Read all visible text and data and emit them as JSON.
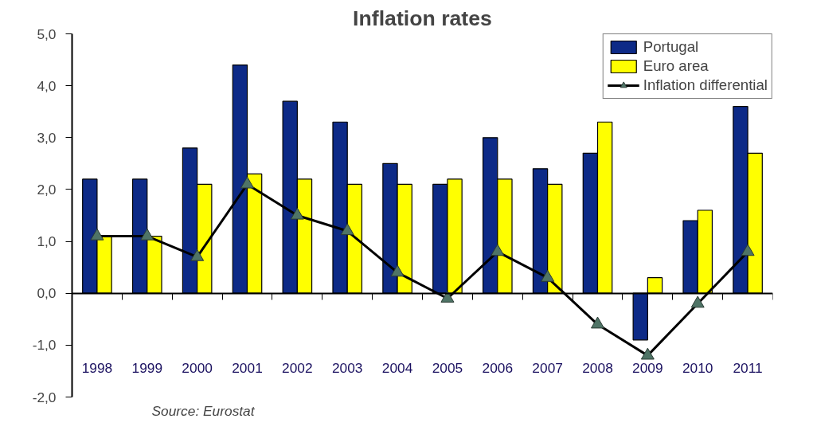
{
  "chart_data": {
    "type": "bar",
    "title": "Inflation rates",
    "categories": [
      "1998",
      "1999",
      "2000",
      "2001",
      "2002",
      "2003",
      "2004",
      "2005",
      "2006",
      "2007",
      "2008",
      "2009",
      "2010",
      "2011"
    ],
    "series": [
      {
        "name": "Portugal",
        "color": "#0d2a87",
        "values": [
          2.2,
          2.2,
          2.8,
          4.4,
          3.7,
          3.3,
          2.5,
          2.1,
          3.0,
          2.4,
          2.7,
          -0.9,
          1.4,
          3.6
        ]
      },
      {
        "name": "Euro area",
        "color": "#ffff00",
        "values": [
          1.1,
          1.1,
          2.1,
          2.3,
          2.2,
          2.1,
          2.1,
          2.2,
          2.2,
          2.1,
          3.3,
          0.3,
          1.6,
          2.7
        ]
      },
      {
        "name": "Inflation differential",
        "type": "line",
        "color": "#000000",
        "marker": "triangle",
        "values": [
          1.1,
          1.1,
          0.7,
          2.1,
          1.5,
          1.2,
          0.4,
          -0.1,
          0.8,
          0.3,
          -0.6,
          -1.2,
          -0.2,
          0.8
        ]
      }
    ],
    "ylim": [
      -2,
      5
    ],
    "yticks": [
      {
        "value": -2,
        "label": "-2,0"
      },
      {
        "value": -1,
        "label": "-1,0"
      },
      {
        "value": 0,
        "label": "0,0"
      },
      {
        "value": 1,
        "label": "1,0"
      },
      {
        "value": 2,
        "label": "2,0"
      },
      {
        "value": 3,
        "label": "3,0"
      },
      {
        "value": 4,
        "label": "4,0"
      },
      {
        "value": 5,
        "label": "5,0"
      }
    ],
    "legend": "top right",
    "annotations": [
      "Source: Eurostat"
    ]
  }
}
